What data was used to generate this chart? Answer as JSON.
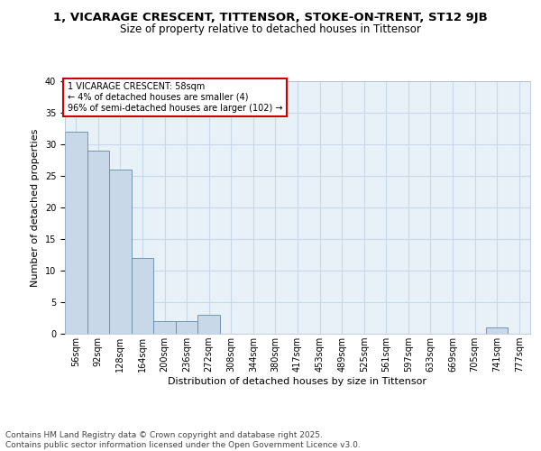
{
  "title_line1": "1, VICARAGE CRESCENT, TITTENSOR, STOKE-ON-TRENT, ST12 9JB",
  "title_line2": "Size of property relative to detached houses in Tittensor",
  "xlabel": "Distribution of detached houses by size in Tittensor",
  "ylabel": "Number of detached properties",
  "categories": [
    "56sqm",
    "92sqm",
    "128sqm",
    "164sqm",
    "200sqm",
    "236sqm",
    "272sqm",
    "308sqm",
    "344sqm",
    "380sqm",
    "417sqm",
    "453sqm",
    "489sqm",
    "525sqm",
    "561sqm",
    "597sqm",
    "633sqm",
    "669sqm",
    "705sqm",
    "741sqm",
    "777sqm"
  ],
  "values": [
    32,
    29,
    26,
    12,
    2,
    2,
    3,
    0,
    0,
    0,
    0,
    0,
    0,
    0,
    0,
    0,
    0,
    0,
    0,
    1,
    0
  ],
  "bar_color": "#c8d8e8",
  "bar_edge_color": "#5b8fa8",
  "annotation_text": "1 VICARAGE CRESCENT: 58sqm\n← 4% of detached houses are smaller (4)\n96% of semi-detached houses are larger (102) →",
  "annotation_box_color": "#ffffff",
  "annotation_box_edge": "#cc0000",
  "ylim": [
    0,
    40
  ],
  "yticks": [
    0,
    5,
    10,
    15,
    20,
    25,
    30,
    35,
    40
  ],
  "grid_color": "#c8d8e8",
  "background_color": "#e8f0f8",
  "footer_text": "Contains HM Land Registry data © Crown copyright and database right 2025.\nContains public sector information licensed under the Open Government Licence v3.0.",
  "title_fontsize": 9.5,
  "subtitle_fontsize": 8.5,
  "axis_label_fontsize": 8,
  "tick_fontsize": 7,
  "annotation_fontsize": 7,
  "footer_fontsize": 6.5
}
